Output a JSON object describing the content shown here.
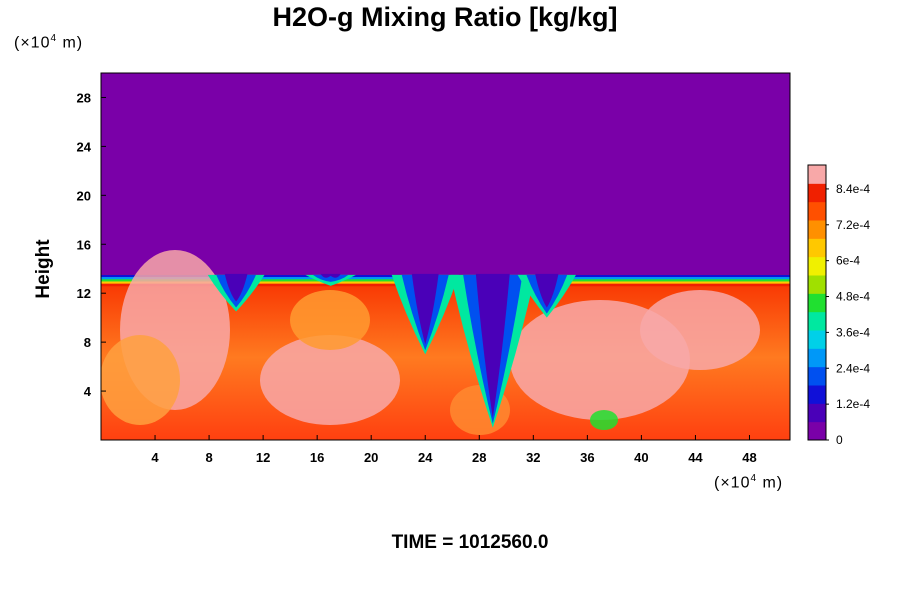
{
  "chart_data": {
    "type": "heatmap",
    "title": "H2O-g Mixing Ratio [kg/kg]",
    "ylabel": "Height",
    "y_unit_prefix": "(×10",
    "y_unit_exp": "4",
    "y_unit_suffix": " m)",
    "x_unit_prefix": "(×10",
    "x_unit_exp": "4",
    "x_unit_suffix": " m)",
    "xlim": [
      0,
      51
    ],
    "ylim": [
      0,
      30
    ],
    "x_ticks": [
      4,
      8,
      12,
      16,
      20,
      24,
      28,
      32,
      36,
      40,
      44,
      48
    ],
    "y_ticks": [
      4,
      8,
      12,
      16,
      20,
      24,
      28
    ],
    "colorbar": {
      "range": [
        0,
        0.00092
      ],
      "ticks": [
        {
          "value": 0,
          "label": "0"
        },
        {
          "value": 0.00012,
          "label": "1.2e-4"
        },
        {
          "value": 0.00024,
          "label": "2.4e-4"
        },
        {
          "value": 0.00036,
          "label": "3.6e-4"
        },
        {
          "value": 0.00048,
          "label": "4.8e-4"
        },
        {
          "value": 0.0006,
          "label": "6e-4"
        },
        {
          "value": 0.00072,
          "label": "7.2e-4"
        },
        {
          "value": 0.00084,
          "label": "8.4e-4"
        }
      ],
      "colors": [
        "#7a00a8",
        "#4a00b8",
        "#1010d8",
        "#0050f0",
        "#0098f8",
        "#00d0e8",
        "#00e8a0",
        "#20e030",
        "#a0e000",
        "#f0f000",
        "#ffc800",
        "#ff9000",
        "#ff5000",
        "#f02000",
        "#f8a8a8"
      ]
    },
    "moist_layer_top": 13.5,
    "dry_intrusions": [
      {
        "x": 10,
        "top": 13.5,
        "bottom": 10.5
      },
      {
        "x": 17,
        "top": 13.5,
        "bottom": 12.6
      },
      {
        "x": 24,
        "top": 13.5,
        "bottom": 7
      },
      {
        "x": 29,
        "top": 13.5,
        "bottom": 1
      },
      {
        "x": 33,
        "top": 13.5,
        "bottom": 10
      }
    ],
    "time_label": "TIME = 1012560.0"
  }
}
